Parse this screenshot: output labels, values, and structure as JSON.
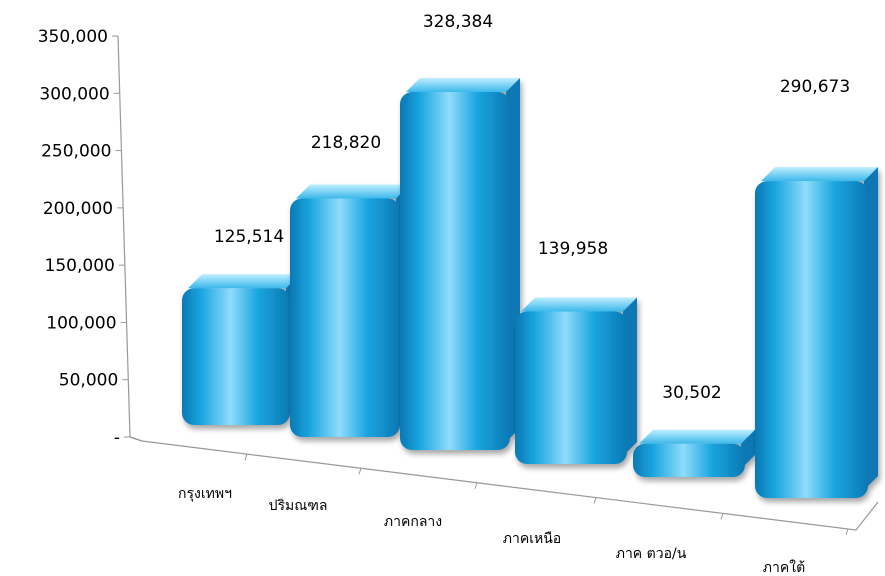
{
  "chart_data": {
    "type": "bar",
    "title": "",
    "xlabel": "",
    "ylabel": "",
    "categories": [
      "กรุงเทพฯ",
      "ปริมณฑล",
      "ภาคกลาง",
      "ภาคเหนือ",
      "ภาค ตวอ/น",
      "ภาคใต้"
    ],
    "values": [
      125514,
      218820,
      328384,
      139958,
      30502,
      290673
    ],
    "data_labels": [
      "125,514",
      "218,820",
      "328,384",
      "139,958",
      "30,502",
      "290,673"
    ],
    "yticks": [
      "-",
      "50,000",
      "100,000",
      "150,000",
      "200,000",
      "250,000",
      "300,000",
      "350,000"
    ],
    "ylim": [
      0,
      350000
    ],
    "grid": false,
    "legend": "none",
    "bar_color": "#1aa6e0",
    "bar_highlight": "#8fdcfb",
    "bar_shadow": "#0a78b3"
  }
}
